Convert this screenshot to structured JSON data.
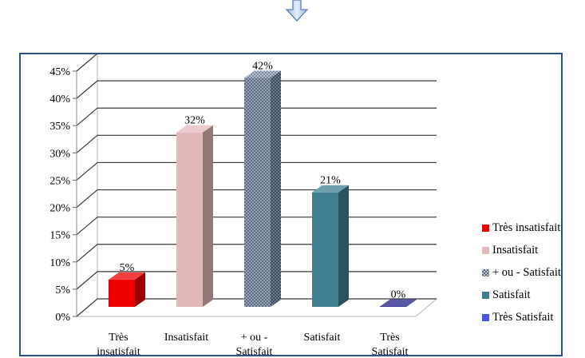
{
  "chart_data": {
    "type": "bar",
    "categories": [
      "Très insatisfait",
      "Insatisfait",
      "+ ou - Satisfait",
      "Satisfait",
      "Très Satisfait"
    ],
    "category_label_lines": [
      [
        "Très",
        "insatisfait"
      ],
      [
        "Insatisfait"
      ],
      [
        "+ ou -",
        "Satisfait"
      ],
      [
        "Satisfait"
      ],
      [
        "Très",
        "Satisfait"
      ]
    ],
    "values": [
      5,
      32,
      42,
      21,
      0
    ],
    "data_labels": [
      "5%",
      "32%",
      "42%",
      "21%",
      "0%"
    ],
    "yticks": [
      "0%",
      "5%",
      "10%",
      "15%",
      "20%",
      "25%",
      "30%",
      "35%",
      "40%",
      "45%"
    ],
    "ylim": [
      0,
      45
    ],
    "grid": true,
    "legend": "right",
    "colors": [
      "#ee0000",
      "#e3b8b8",
      "#7d8ba0",
      "#3f7f91",
      "#22208a"
    ],
    "legend_entries": [
      "Très insatisfait",
      "Insatisfait",
      "+ ou - Satisfait",
      "Satisfait",
      "Très Satisfait"
    ]
  }
}
